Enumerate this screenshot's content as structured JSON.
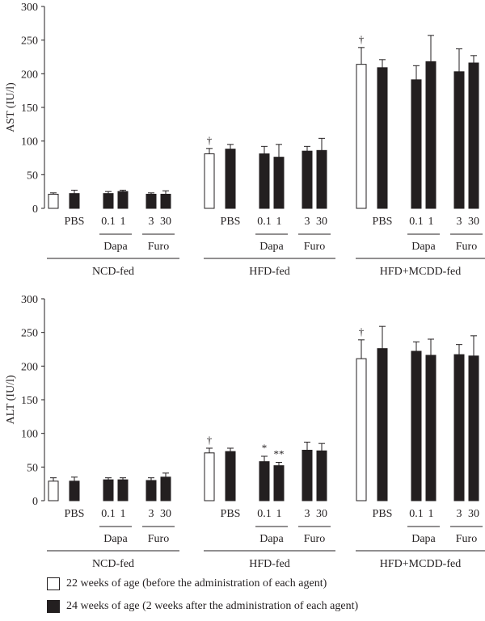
{
  "chart_data": [
    {
      "type": "bar",
      "panel": "AST",
      "ylabel": "AST (IU/l)",
      "ylim": [
        0,
        300
      ],
      "yticks": [
        0,
        50,
        100,
        150,
        200,
        250,
        300
      ],
      "groups": [
        {
          "name": "NCD-fed",
          "bars": [
            {
              "label": "",
              "series": "22w",
              "value": 21,
              "err": 2,
              "mark": ""
            },
            {
              "label": "PBS",
              "series": "24w",
              "value": 22,
              "err": 5,
              "mark": ""
            },
            {
              "label": "0.1",
              "series": "24w",
              "value": 22,
              "err": 3,
              "mark": ""
            },
            {
              "label": "1",
              "series": "24w",
              "value": 25,
              "err": 2,
              "mark": ""
            },
            {
              "label": "3",
              "series": "24w",
              "value": 21,
              "err": 2,
              "mark": ""
            },
            {
              "label": "30",
              "series": "24w",
              "value": 21,
              "err": 5,
              "mark": ""
            }
          ]
        },
        {
          "name": "HFD-fed",
          "bars": [
            {
              "label": "",
              "series": "22w",
              "value": 81,
              "err": 8,
              "mark": "†"
            },
            {
              "label": "PBS",
              "series": "24w",
              "value": 88,
              "err": 7,
              "mark": ""
            },
            {
              "label": "0.1",
              "series": "24w",
              "value": 81,
              "err": 11,
              "mark": ""
            },
            {
              "label": "1",
              "series": "24w",
              "value": 76,
              "err": 19,
              "mark": ""
            },
            {
              "label": "3",
              "series": "24w",
              "value": 85,
              "err": 7,
              "mark": ""
            },
            {
              "label": "30",
              "series": "24w",
              "value": 86,
              "err": 18,
              "mark": ""
            }
          ]
        },
        {
          "name": "HFD+MCDD-fed",
          "bars": [
            {
              "label": "",
              "series": "22w",
              "value": 214,
              "err": 25,
              "mark": "†"
            },
            {
              "label": "PBS",
              "series": "24w",
              "value": 209,
              "err": 12,
              "mark": ""
            },
            {
              "label": "0.1",
              "series": "24w",
              "value": 191,
              "err": 21,
              "mark": ""
            },
            {
              "label": "1",
              "series": "24w",
              "value": 218,
              "err": 39,
              "mark": ""
            },
            {
              "label": "3",
              "series": "24w",
              "value": 203,
              "err": 34,
              "mark": ""
            },
            {
              "label": "30",
              "series": "24w",
              "value": 216,
              "err": 11,
              "mark": ""
            }
          ]
        }
      ],
      "subgroups": [
        {
          "label": "Dapa",
          "bars": [
            2,
            3
          ]
        },
        {
          "label": "Furo",
          "bars": [
            4,
            5
          ]
        }
      ]
    },
    {
      "type": "bar",
      "panel": "ALT",
      "ylabel": "ALT (IU/l)",
      "ylim": [
        0,
        300
      ],
      "yticks": [
        0,
        50,
        100,
        150,
        200,
        250,
        300
      ],
      "groups": [
        {
          "name": "NCD-fed",
          "bars": [
            {
              "label": "",
              "series": "22w",
              "value": 29,
              "err": 5,
              "mark": ""
            },
            {
              "label": "PBS",
              "series": "24w",
              "value": 29,
              "err": 6,
              "mark": ""
            },
            {
              "label": "0.1",
              "series": "24w",
              "value": 31,
              "err": 3,
              "mark": ""
            },
            {
              "label": "1",
              "series": "24w",
              "value": 31,
              "err": 3,
              "mark": ""
            },
            {
              "label": "3",
              "series": "24w",
              "value": 30,
              "err": 4,
              "mark": ""
            },
            {
              "label": "30",
              "series": "24w",
              "value": 35,
              "err": 6,
              "mark": ""
            }
          ]
        },
        {
          "name": "HFD-fed",
          "bars": [
            {
              "label": "",
              "series": "22w",
              "value": 71,
              "err": 7,
              "mark": "†"
            },
            {
              "label": "PBS",
              "series": "24w",
              "value": 73,
              "err": 5,
              "mark": ""
            },
            {
              "label": "0.1",
              "series": "24w",
              "value": 58,
              "err": 8,
              "mark": "*"
            },
            {
              "label": "1",
              "series": "24w",
              "value": 52,
              "err": 5,
              "mark": "**"
            },
            {
              "label": "3",
              "series": "24w",
              "value": 75,
              "err": 12,
              "mark": ""
            },
            {
              "label": "30",
              "series": "24w",
              "value": 74,
              "err": 11,
              "mark": ""
            }
          ]
        },
        {
          "name": "HFD+MCDD-fed",
          "bars": [
            {
              "label": "",
              "series": "22w",
              "value": 211,
              "err": 28,
              "mark": "†"
            },
            {
              "label": "PBS",
              "series": "24w",
              "value": 226,
              "err": 33,
              "mark": ""
            },
            {
              "label": "0.1",
              "series": "24w",
              "value": 222,
              "err": 14,
              "mark": ""
            },
            {
              "label": "1",
              "series": "24w",
              "value": 216,
              "err": 24,
              "mark": ""
            },
            {
              "label": "3",
              "series": "24w",
              "value": 217,
              "err": 15,
              "mark": ""
            },
            {
              "label": "30",
              "series": "24w",
              "value": 215,
              "err": 30,
              "mark": ""
            }
          ]
        }
      ],
      "subgroups": [
        {
          "label": "Dapa",
          "bars": [
            2,
            3
          ]
        },
        {
          "label": "Furo",
          "bars": [
            4,
            5
          ]
        }
      ]
    }
  ],
  "legend": {
    "items": [
      {
        "key": "22w",
        "label": "22 weeks of age (before the administration of each agent)",
        "color": "#ffffff"
      },
      {
        "key": "24w",
        "label": "24 weeks of age (2 weeks after the administration of each agent)",
        "color": "#231f20"
      }
    ]
  },
  "colors": {
    "ink": "#231f20",
    "open_bar": "#ffffff",
    "filled_bar": "#231f20"
  }
}
